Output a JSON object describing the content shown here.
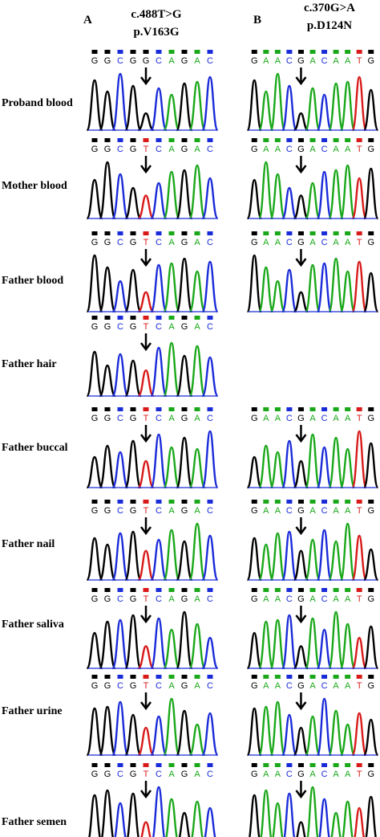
{
  "panels": {
    "A": {
      "letter": "A",
      "mutation": "c.488T>G",
      "protein": "p.V163G"
    },
    "B": {
      "letter": "B",
      "mutation": "c.370G>A",
      "protein": "p.D124N"
    }
  },
  "rows": [
    {
      "label": "Proband blood",
      "seqA": "GGCGGCAGAC",
      "seqB": "GAACGACAATG"
    },
    {
      "label": "Mother blood",
      "seqA": "GGCGTCAGAC",
      "seqB": "GAACGACAATG"
    },
    {
      "label": "Father blood",
      "seqA": "GGCGTCAGAC",
      "seqB": "GAACGACAATG"
    },
    {
      "label": "Father hair",
      "seqA": "GGCGTCAGAC",
      "seqB": ""
    },
    {
      "label": "Father buccal",
      "seqA": "GGCGTCAGAC",
      "seqB": "GAACGACAATG"
    },
    {
      "label": "Father nail",
      "seqA": "GGCGTCAGAC",
      "seqB": "GAACGACAATG"
    },
    {
      "label": "Father saliva",
      "seqA": "GGCGTCAGAC",
      "seqB": "GAACGACAATG"
    },
    {
      "label": "Father urine",
      "seqA": "GGCGTCAGAC",
      "seqB": "GAACGACAATG"
    },
    {
      "label": "Father semen",
      "seqA": "GGCGTCAGAC",
      "seqB": "GAACGACAATG"
    }
  ],
  "base_colors": {
    "A": "#1aa81a",
    "C": "#1a2bd8",
    "G": "#000000",
    "T": "#d81a1a"
  }
}
